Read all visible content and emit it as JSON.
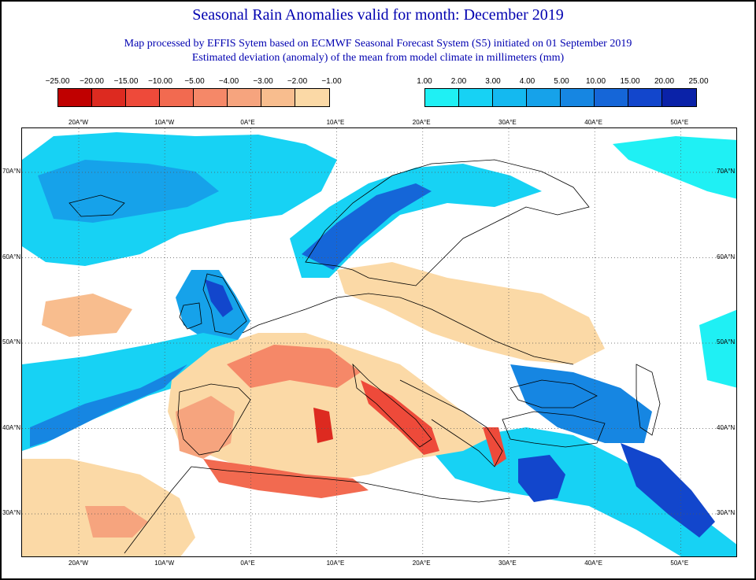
{
  "titles": {
    "main": "Seasonal Rain Anomalies valid for month: December 2019",
    "line2": "Map processed by EFFIS Sytem based on ECMWF Seasonal Forecast System (S5) initiated on 01 September 2019",
    "line3": "Estimated deviation (anomaly) of the mean from model climate in millimeters (mm)"
  },
  "legend_negative": {
    "labels": [
      "−25.00",
      "−20.00",
      "−15.00",
      "−10.00",
      "−5.00",
      "−4.00",
      "−3.00",
      "−2.00",
      "−1.00"
    ],
    "colors": [
      "#c00000",
      "#dd2a20",
      "#ee4a3a",
      "#f26a50",
      "#f58868",
      "#f6a47e",
      "#f8bd8e",
      "#fbd9a6"
    ]
  },
  "legend_positive": {
    "labels": [
      "1.00",
      "2.00",
      "3.00",
      "4.00",
      "5.00",
      "10.00",
      "15.00",
      "20.00",
      "25.00"
    ],
    "colors": [
      "#1ff0f4",
      "#17d2f4",
      "#14b9f0",
      "#16a2ea",
      "#1686e2",
      "#1566d8",
      "#1246cc",
      "#0a22a8"
    ]
  },
  "top_ticks": [
    "20A°W",
    "10A°W",
    "0A°E",
    "10A°E",
    "20A°E",
    "30A°E",
    "40A°E",
    "50A°E"
  ],
  "bottom_ticks": [
    "20A°W",
    "10A°W",
    "0A°E",
    "10A°E",
    "20A°E",
    "30A°E",
    "40A°E",
    "50A°E"
  ],
  "left_ticks": [
    "70A°N",
    "60A°N",
    "50A°N",
    "40A°N",
    "30A°N"
  ],
  "right_ticks": [
    "70A°N",
    "60A°N",
    "50A°N",
    "40A°N",
    "30A°N"
  ],
  "map_colors": {
    "land_line": "#000000",
    "grid": "#555555",
    "contour": "#9aa0aa"
  }
}
